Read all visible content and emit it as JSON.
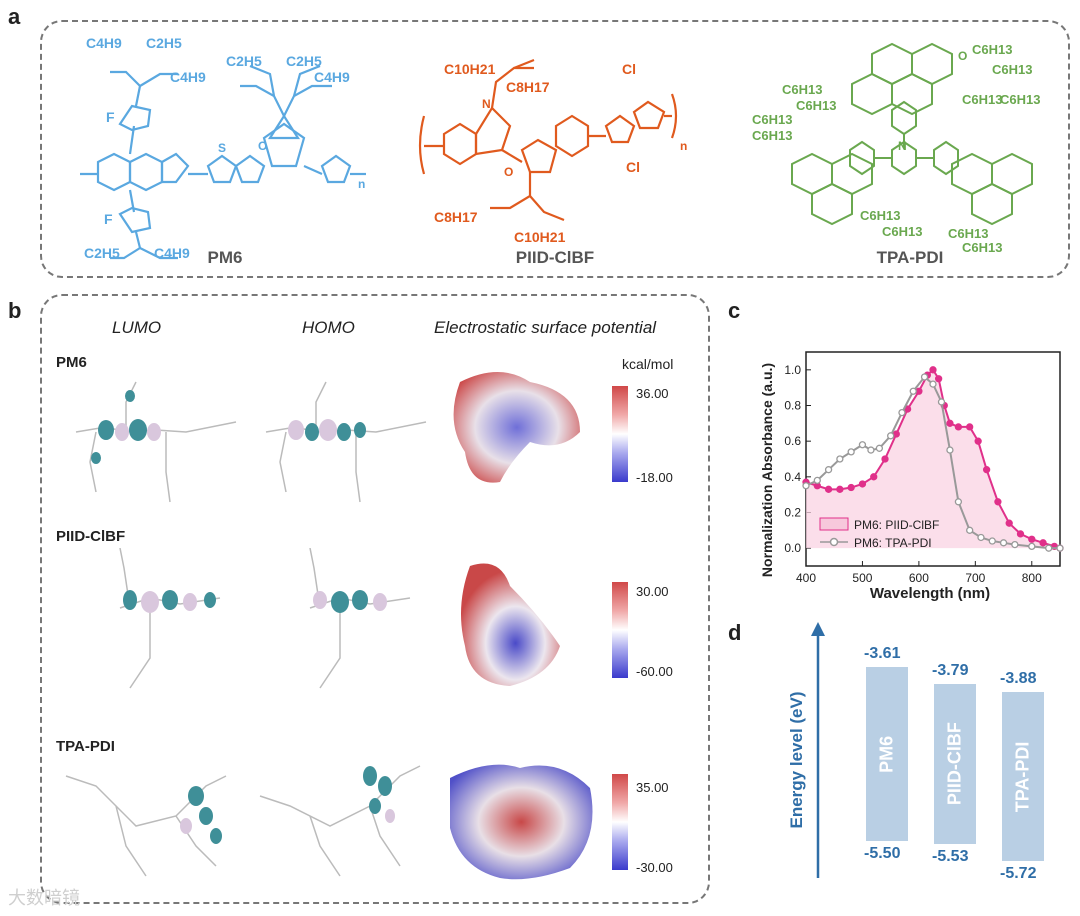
{
  "panels": {
    "a": "a",
    "b": "b",
    "c": "c",
    "d": "d"
  },
  "panel_a": {
    "molecules": [
      {
        "name": "PM6",
        "color": "#5aa8e0"
      },
      {
        "name": "PIID-ClBF",
        "color": "#e05a1e"
      },
      {
        "name": "TPA-PDI",
        "color": "#6aa84f"
      }
    ],
    "pm6_labels": {
      "c4h9_top": "C4H9",
      "c2h5_top": "C2H5",
      "c2h5_top2": "C2H5",
      "c4h9_mid": "C4H9",
      "c2h5_mid": "C2H5",
      "c4h9_mid2": "C4H9",
      "f_top": "F",
      "f_bot": "F",
      "c2h5_bot": "C2H5",
      "c4h9_bot": "C4H9",
      "n": "n",
      "s": "S",
      "o": "O"
    },
    "piid_labels": {
      "c10h21_top": "C10H21",
      "c8h17_top": "C8H17",
      "c8h17_bot": "C8H17",
      "c10h21_bot": "C10H21",
      "cl1": "Cl",
      "cl2": "Cl",
      "n_atom": "N",
      "o_atom": "O",
      "n": "n"
    },
    "tpa_labels": {
      "c6h13": "C6H13",
      "n_atom": "N",
      "o_atom": "O"
    }
  },
  "panel_b": {
    "headers": {
      "lumo": "LUMO",
      "homo": "HOMO",
      "esp": "Electrostatic surface potential"
    },
    "unit": "kcal/mol",
    "rows": [
      {
        "label": "PM6",
        "max": "36.00",
        "min": "-18.00"
      },
      {
        "label": "PIID-ClBF",
        "max": "30.00",
        "min": "-60.00"
      },
      {
        "label": "TPA-PDI",
        "max": "35.00",
        "min": "-30.00"
      }
    ]
  },
  "chart_data": {
    "type": "line",
    "title": "",
    "xlabel": "Wavelength (nm)",
    "ylabel": "Normalization Absorbance (a.u.)",
    "xlim": [
      400,
      850
    ],
    "ylim": [
      -0.1,
      1.1
    ],
    "xticks": [
      "400",
      "500",
      "600",
      "700",
      "800"
    ],
    "yticks": [
      "0.0",
      "0.2",
      "0.4",
      "0.6",
      "0.8",
      "1.0"
    ],
    "series": [
      {
        "name": "PM6: PIID-ClBF",
        "color": "#e0308a",
        "fill": true,
        "x": [
          400,
          420,
          440,
          460,
          480,
          500,
          520,
          540,
          560,
          580,
          600,
          615,
          625,
          635,
          645,
          655,
          670,
          690,
          705,
          720,
          740,
          760,
          780,
          800,
          820,
          840,
          850
        ],
        "y": [
          0.37,
          0.35,
          0.33,
          0.33,
          0.34,
          0.36,
          0.4,
          0.5,
          0.64,
          0.78,
          0.88,
          0.97,
          1.0,
          0.95,
          0.8,
          0.7,
          0.68,
          0.68,
          0.6,
          0.44,
          0.26,
          0.14,
          0.08,
          0.05,
          0.03,
          0.01,
          0.0
        ]
      },
      {
        "name": "PM6: TPA-PDI",
        "color": "#999999",
        "fill": false,
        "x": [
          400,
          420,
          440,
          460,
          480,
          500,
          515,
          530,
          550,
          570,
          590,
          610,
          625,
          640,
          655,
          670,
          690,
          710,
          730,
          750,
          770,
          800,
          830,
          850
        ],
        "y": [
          0.35,
          0.38,
          0.44,
          0.5,
          0.54,
          0.58,
          0.55,
          0.56,
          0.63,
          0.76,
          0.88,
          0.96,
          0.92,
          0.82,
          0.55,
          0.26,
          0.1,
          0.06,
          0.04,
          0.03,
          0.02,
          0.01,
          0.0,
          0.0
        ]
      }
    ]
  },
  "panel_d": {
    "axis_label": "Energy level (eV)",
    "bars": [
      {
        "name": "PM6",
        "lumo": -3.61,
        "homo": -5.5,
        "lumo_text": "-3.61",
        "homo_text": "-5.50"
      },
      {
        "name": "PIID-ClBF",
        "lumo": -3.79,
        "homo": -5.53,
        "lumo_text": "-3.79",
        "homo_text": "-5.53"
      },
      {
        "name": "TPA-PDI",
        "lumo": -3.88,
        "homo": -5.72,
        "lumo_text": "-3.88",
        "homo_text": "-5.72"
      }
    ],
    "axis_color": "#2f6ea7"
  },
  "watermark": "大数暗镜"
}
